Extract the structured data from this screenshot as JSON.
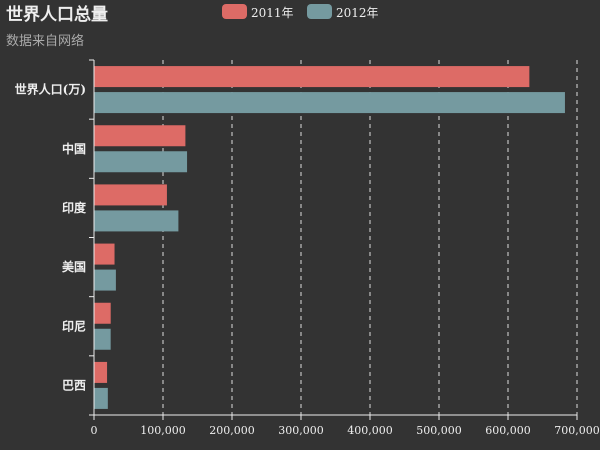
{
  "chart_data": {
    "type": "bar",
    "orientation": "horizontal",
    "title": "世界人口总量",
    "subtitle": "数据来自网络",
    "categories": [
      "世界人口(万)",
      "中国",
      "印度",
      "美国",
      "印尼",
      "巴西"
    ],
    "series": [
      {
        "name": "2011年",
        "color": "#dd6b66",
        "values": [
          630230,
          131744,
          104970,
          29034,
          23489,
          18203
        ]
      },
      {
        "name": "2012年",
        "color": "#759aa0",
        "values": [
          681807,
          134141,
          121594,
          31000,
          23438,
          19325
        ]
      }
    ],
    "xlim": [
      0,
      700000
    ],
    "x_ticks": [
      "0",
      "100,000",
      "200,000",
      "300,000",
      "400,000",
      "500,000",
      "600,000",
      "700,000"
    ],
    "grid": true,
    "legend_position": "top-center"
  }
}
